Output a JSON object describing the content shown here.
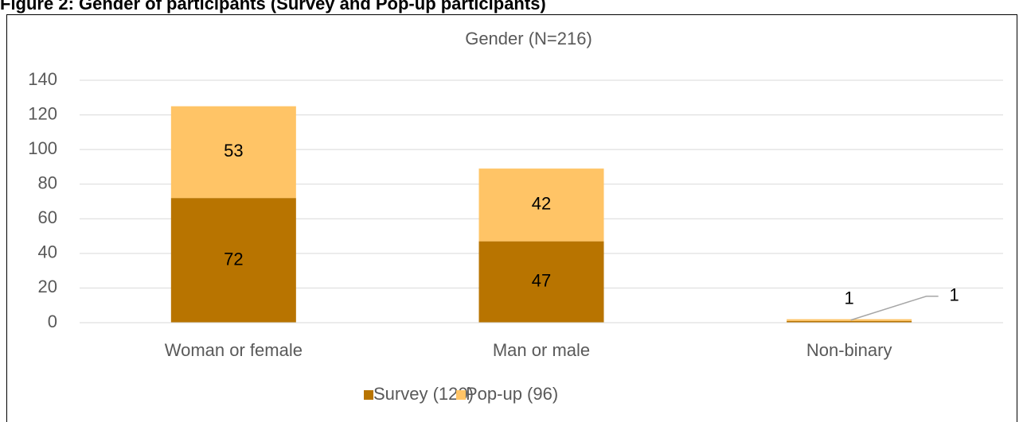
{
  "chart_data": {
    "type": "stacked_bar",
    "figure_title": "Figure 2: Gender of participants (Survey and Pop-up participants)",
    "title": "Gender (N=216)",
    "categories": [
      "Woman or female",
      "Man or male",
      "Non-binary"
    ],
    "series": [
      {
        "name": "Survey (120)",
        "color": "#b87400",
        "values": [
          72,
          47,
          1
        ]
      },
      {
        "name": "Pop-up (96)",
        "color": "#ffc466",
        "values": [
          53,
          42,
          1
        ]
      }
    ],
    "ylim": [
      0,
      140
    ],
    "yticks": [
      0,
      20,
      40,
      60,
      80,
      100,
      120,
      140
    ],
    "grid": true,
    "legend": "bottom"
  }
}
